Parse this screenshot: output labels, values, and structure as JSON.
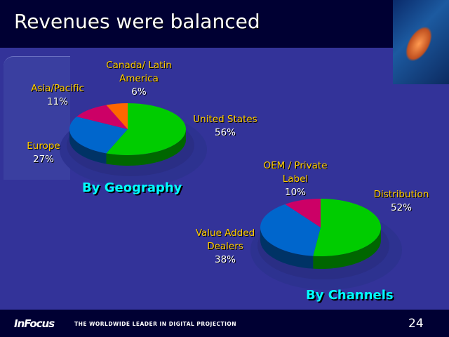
{
  "title": "Revenues were balanced",
  "footer": {
    "logo": "InFocus",
    "tagline": "THE WORLDWIDE LEADER IN DIGITAL PROJECTION",
    "page_number": "24"
  },
  "chart_data": [
    {
      "type": "pie",
      "title": "By Geography",
      "start": "top",
      "direction": "clockwise",
      "slices": [
        {
          "label": "United States",
          "value": 56,
          "display": "56%",
          "color": "#00cc00",
          "side": "#006600"
        },
        {
          "label": "Europe",
          "value": 27,
          "display": "27%",
          "color": "#0066cc",
          "side": "#003366"
        },
        {
          "label": "Asia/Pacific",
          "value": 11,
          "display": "11%",
          "color": "#cc0066",
          "side": "#660033"
        },
        {
          "label": "Canada/ Latin America",
          "value": 6,
          "display": "6%",
          "color": "#ff6600",
          "side": "#803300"
        }
      ]
    },
    {
      "type": "pie",
      "title": "By Channels",
      "start": "top",
      "direction": "clockwise",
      "slices": [
        {
          "label": "Distribution",
          "value": 52,
          "display": "52%",
          "color": "#00cc00",
          "side": "#006600"
        },
        {
          "label": "Value Added Dealers",
          "value": 38,
          "display": "38%",
          "color": "#0066cc",
          "side": "#003366"
        },
        {
          "label": "OEM / Private Label",
          "value": 10,
          "display": "10%",
          "color": "#cc0066",
          "side": "#660033"
        }
      ]
    }
  ]
}
